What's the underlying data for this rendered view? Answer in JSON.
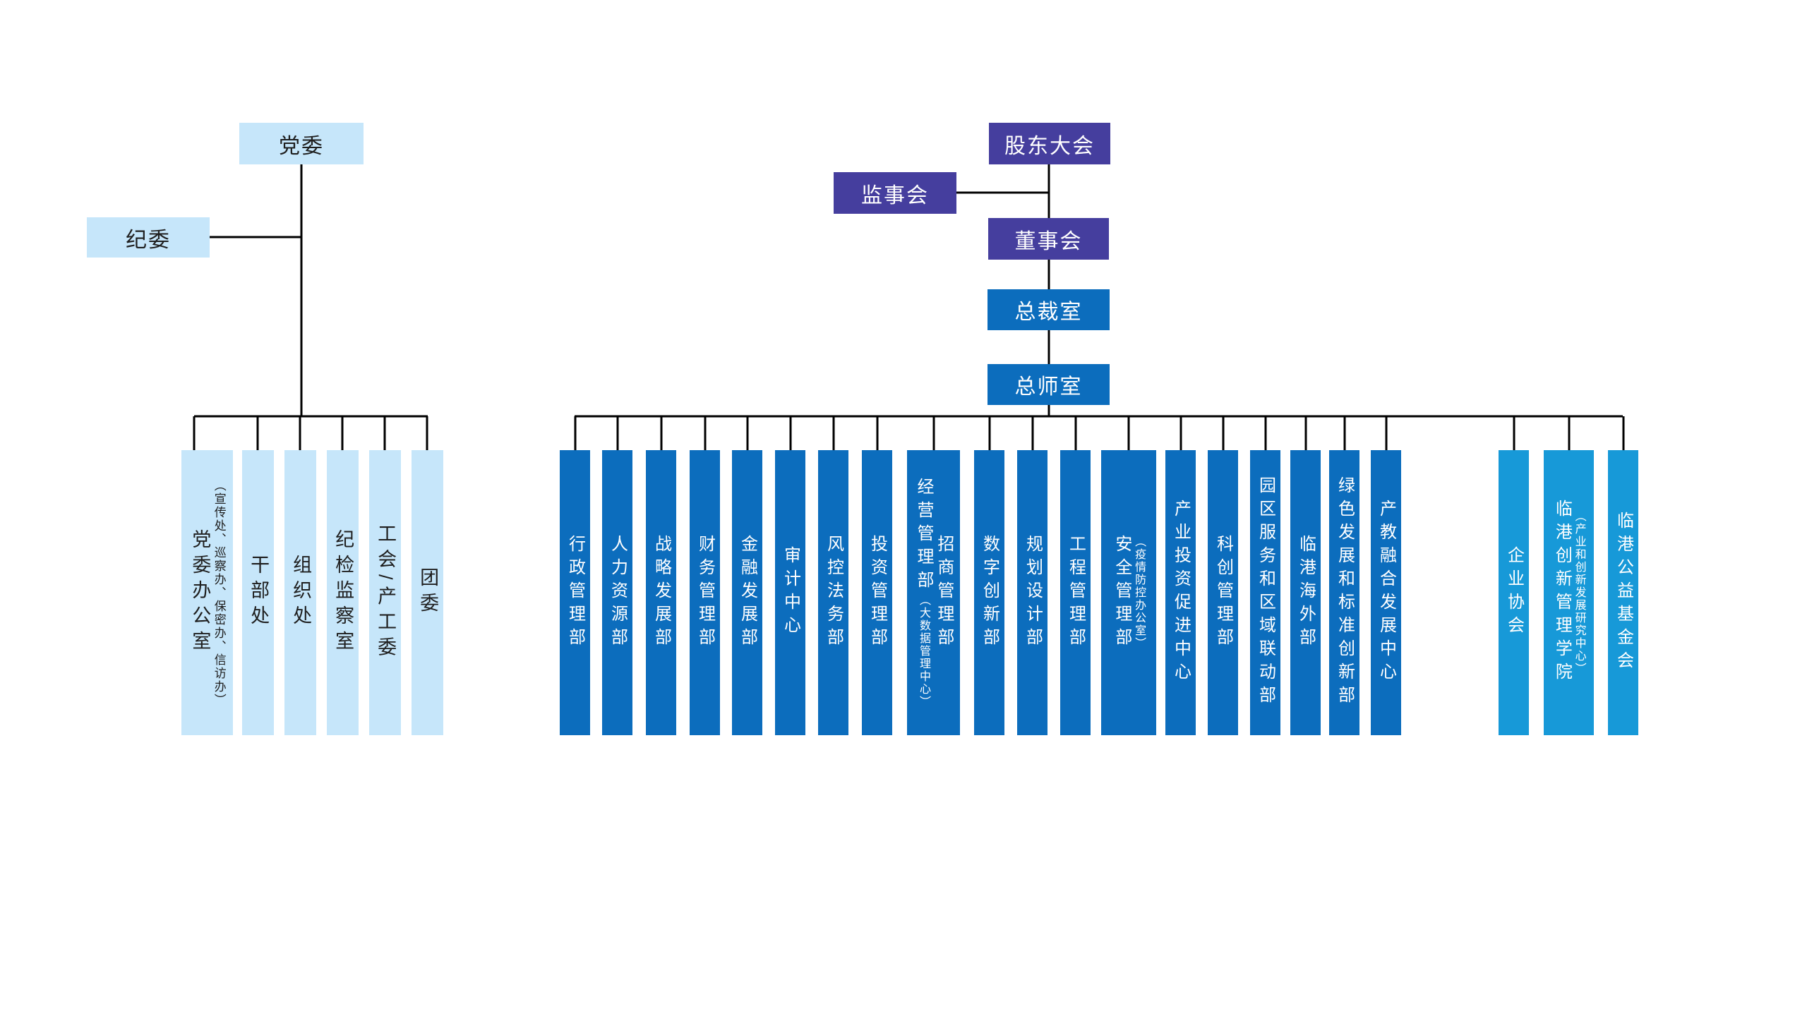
{
  "colors": {
    "purple": "#453e9e",
    "dark_blue": "#0c6dbd",
    "sky_blue": "#1799d8",
    "light_blue": "#c6e6fa",
    "line": "#000000"
  },
  "nodes": {
    "party_committee": "党委",
    "discipline_committee": "纪委",
    "shareholders_meeting": "股东大会",
    "supervisory_board": "监事会",
    "board_of_directors": "董事会",
    "president_office": "总裁室",
    "chief_engineer_office": "总师室"
  },
  "party_departments": [
    {
      "columns": [
        {
          "main": "党委办公室"
        },
        {
          "sub": "（宣传处、巡察办、保密办、信访办）"
        }
      ]
    },
    {
      "main": "干部处"
    },
    {
      "main": "组织处"
    },
    {
      "main": "纪检监察室"
    },
    {
      "main": "工会/产工委"
    },
    {
      "main": "团委"
    }
  ],
  "admin_departments": [
    {
      "main": "行政管理部"
    },
    {
      "main": "人力资源部"
    },
    {
      "main": "战略发展部"
    },
    {
      "main": "财务管理部"
    },
    {
      "main": "金融发展部"
    },
    {
      "main": "审计中心"
    },
    {
      "main": "风控法务部"
    },
    {
      "main": "投资管理部"
    },
    {
      "columns": [
        {
          "main": "经营管理部",
          "sub": "（大数据管理中心）"
        },
        {
          "main": "招商管理部"
        }
      ]
    },
    {
      "main": "数字创新部"
    },
    {
      "main": "规划设计部"
    },
    {
      "main": "工程管理部"
    },
    {
      "columns": [
        {
          "main": "安全管理部"
        },
        {
          "sub": "（疫情防控办公室）"
        }
      ]
    },
    {
      "main": "产业投资促进中心"
    },
    {
      "main": "科创管理部"
    },
    {
      "main": "园区服务和区域联动部"
    },
    {
      "main": "临港海外部"
    },
    {
      "main": "绿色发展和标准创新部"
    },
    {
      "main": "产教融合发展中心"
    }
  ],
  "affiliated_organizations": [
    {
      "main": "企业协会"
    },
    {
      "columns": [
        {
          "main": "临港创新管理学院"
        },
        {
          "sub": "（产业和创新发展研究中心）"
        }
      ]
    },
    {
      "main": "临港公益基金会"
    }
  ]
}
